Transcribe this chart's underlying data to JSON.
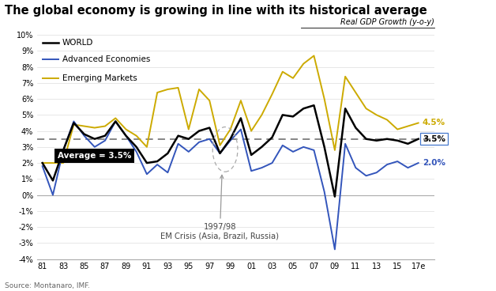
{
  "title": "The global economy is growing in line with its historical average",
  "subtitle": "Real GDP Growth (y-o-y)",
  "source": "Source: Montanaro, IMF.",
  "average": 3.5,
  "average_label": "Average = 3.5%",
  "xlabels": [
    "81",
    "83",
    "85",
    "87",
    "89",
    "91",
    "93",
    "95",
    "97",
    "99",
    "01",
    "03",
    "05",
    "07",
    "09",
    "11",
    "13",
    "15",
    "17e"
  ],
  "xtick_years": [
    1981,
    1983,
    1985,
    1987,
    1989,
    1991,
    1993,
    1995,
    1997,
    1999,
    2001,
    2003,
    2005,
    2007,
    2009,
    2011,
    2013,
    2015,
    2017
  ],
  "years": [
    1981,
    1982,
    1983,
    1984,
    1985,
    1986,
    1987,
    1988,
    1989,
    1990,
    1991,
    1992,
    1993,
    1994,
    1995,
    1996,
    1997,
    1998,
    1999,
    2000,
    2001,
    2002,
    2003,
    2004,
    2005,
    2006,
    2007,
    2008,
    2009,
    2010,
    2011,
    2012,
    2013,
    2014,
    2015,
    2016,
    2017
  ],
  "world": [
    2.0,
    0.9,
    2.8,
    4.5,
    3.8,
    3.5,
    3.7,
    4.6,
    3.7,
    3.0,
    2.0,
    2.1,
    2.6,
    3.7,
    3.5,
    4.0,
    4.2,
    2.6,
    3.5,
    4.8,
    2.5,
    3.0,
    3.6,
    5.0,
    4.9,
    5.4,
    5.6,
    3.0,
    -0.1,
    5.4,
    4.2,
    3.5,
    3.4,
    3.5,
    3.4,
    3.2,
    3.5
  ],
  "advanced": [
    1.8,
    0.0,
    2.8,
    4.6,
    3.7,
    3.0,
    3.4,
    4.6,
    3.7,
    2.7,
    1.3,
    1.9,
    1.4,
    3.2,
    2.7,
    3.3,
    3.5,
    2.6,
    3.4,
    4.1,
    1.5,
    1.7,
    2.0,
    3.1,
    2.7,
    3.0,
    2.8,
    0.2,
    -3.4,
    3.2,
    1.7,
    1.2,
    1.4,
    1.9,
    2.1,
    1.7,
    2.0
  ],
  "emerging": [
    2.0,
    2.0,
    2.0,
    4.4,
    4.3,
    4.2,
    4.3,
    4.8,
    4.1,
    3.7,
    3.0,
    6.4,
    6.6,
    6.7,
    4.1,
    6.6,
    5.9,
    3.1,
    4.1,
    5.9,
    4.0,
    5.0,
    6.3,
    7.7,
    7.3,
    8.2,
    8.7,
    6.0,
    2.8,
    7.4,
    6.4,
    5.4,
    5.0,
    4.7,
    4.1,
    4.3,
    4.5
  ],
  "world_color": "#000000",
  "advanced_color": "#3355bb",
  "emerging_color": "#ccaa00",
  "dashed_color": "#666666",
  "bg_color": "#ffffff",
  "separator_color": "#c8a8a8",
  "end_label_world": "3.5%",
  "end_label_advanced": "2.0%",
  "end_label_emerging": "4.5%",
  "annotation_text": "1997/98\nEM Crisis (Asia, Brazil, Russia)",
  "ylim_min": -4,
  "ylim_max": 10,
  "xmin": 1980.5,
  "xmax": 2018.5
}
